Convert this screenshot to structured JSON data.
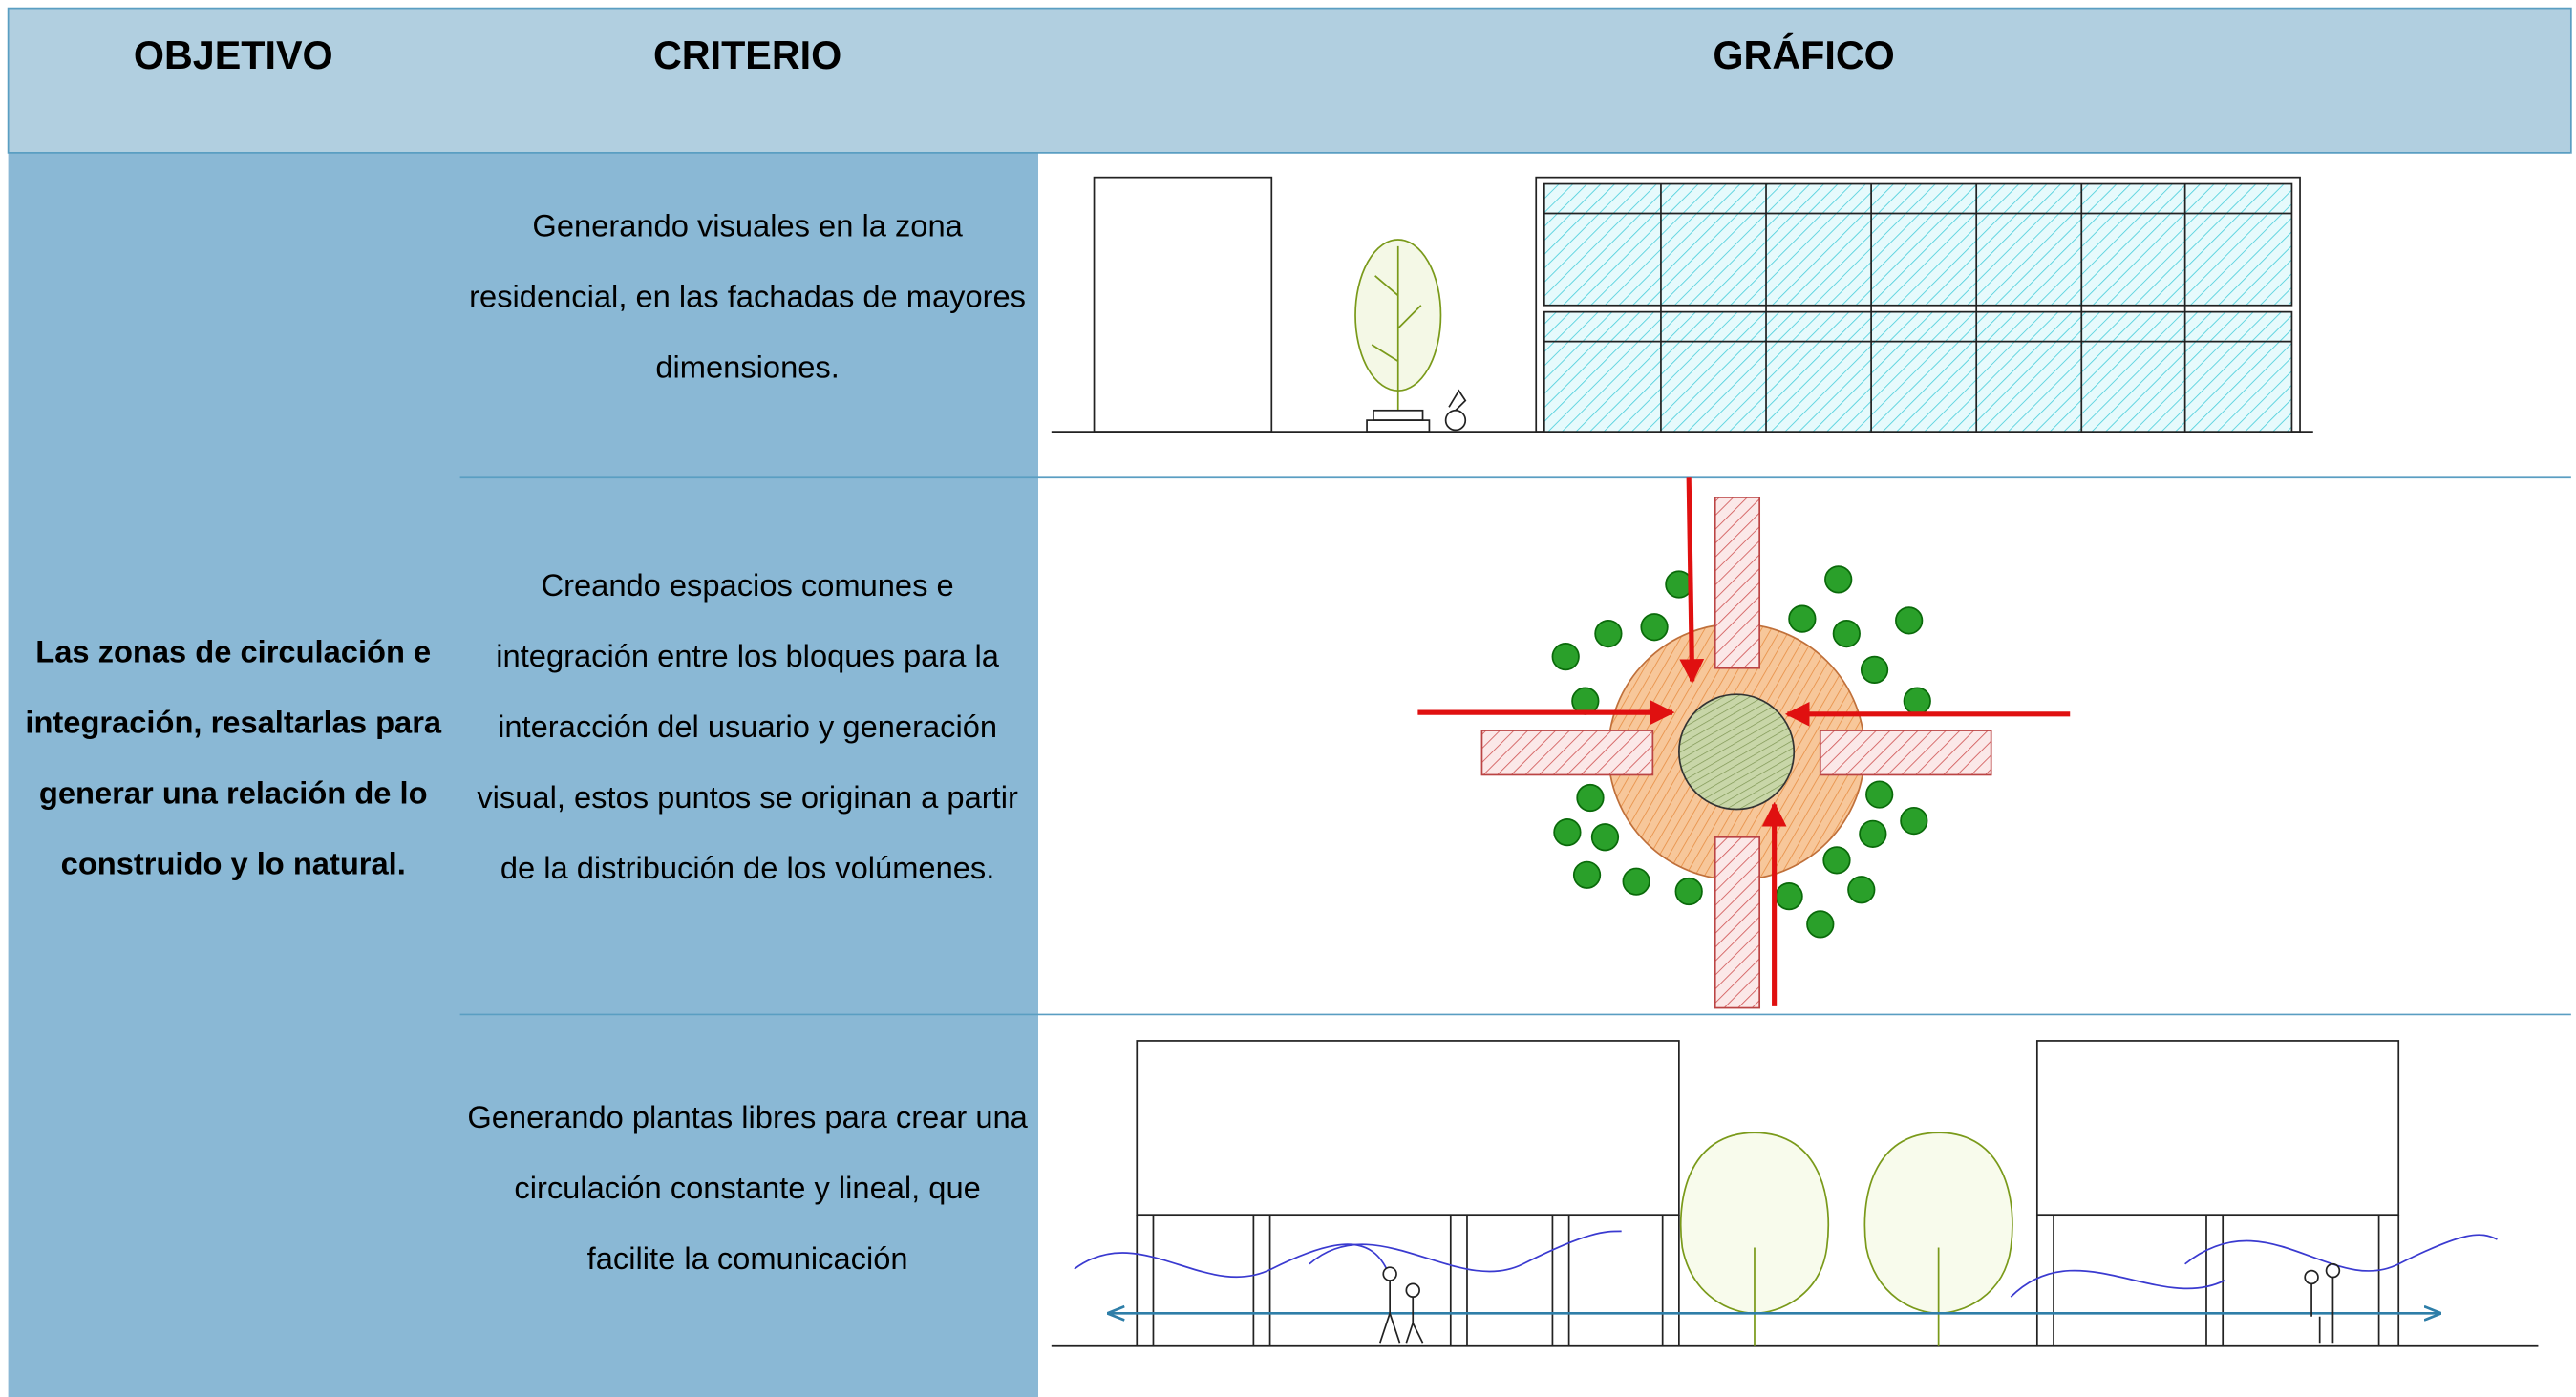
{
  "header": {
    "objetivo": "OBJETIVO",
    "criterio": "CRITERIO",
    "grafico": "GRÁFICO"
  },
  "objetivo": {
    "lines": [
      "Las zonas de circulación e",
      "integración, resaltarlas para",
      "generar una relación de lo",
      "construido y lo natural."
    ]
  },
  "rows": [
    {
      "criterio": {
        "lines": [
          "Generando visuales en la zona",
          "residencial, en las fachadas de mayores",
          "dimensiones."
        ]
      }
    },
    {
      "criterio": {
        "lines": [
          "Creando espacios comunes e",
          "integración entre los bloques para la",
          "interacción del usuario y generación",
          "visual, estos puntos se originan a partir",
          "de la distribución de los volúmenes."
        ]
      }
    },
    {
      "criterio": {
        "lines": [
          "Generando plantas libres para crear una",
          "circulación constante y lineal, que",
          "facilite la comunicación"
        ]
      }
    }
  ]
}
